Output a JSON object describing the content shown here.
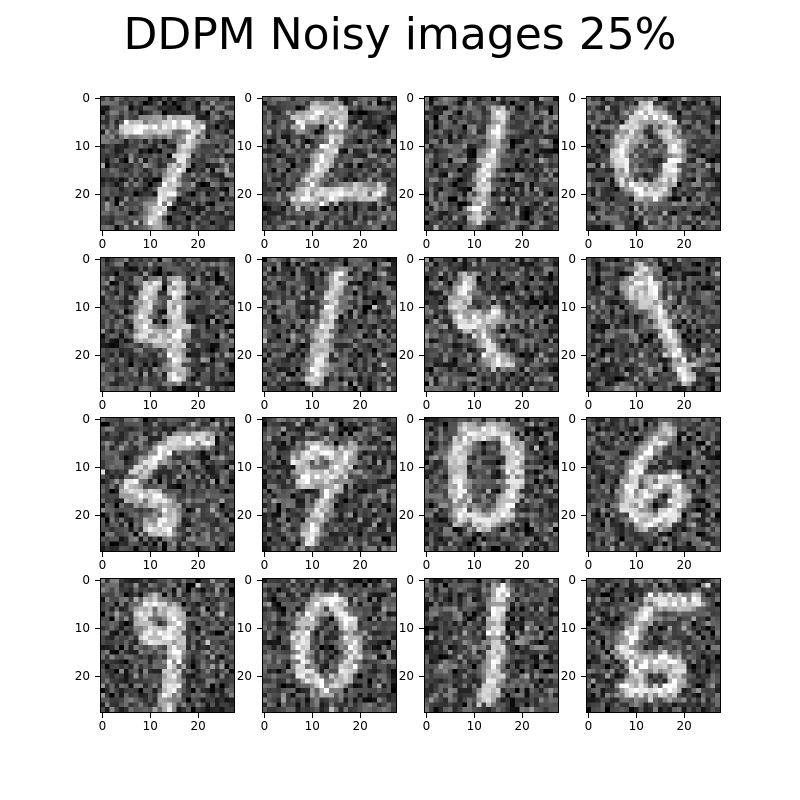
{
  "figure": {
    "title": "DDPM Noisy images 25%"
  },
  "grid": {
    "rows": 4,
    "cols": 4
  },
  "axes": {
    "image_size": 28,
    "ticks": [
      0,
      10,
      20
    ],
    "tick_labels": [
      "0",
      "10",
      "20"
    ]
  },
  "panels": [
    {
      "digit": "7"
    },
    {
      "digit": "2"
    },
    {
      "digit": "1"
    },
    {
      "digit": "0"
    },
    {
      "digit": "4"
    },
    {
      "digit": "1"
    },
    {
      "digit": "4"
    },
    {
      "digit": "9"
    },
    {
      "digit": "5"
    },
    {
      "digit": "9"
    },
    {
      "digit": "0"
    },
    {
      "digit": "6"
    },
    {
      "digit": "9"
    },
    {
      "digit": "0"
    },
    {
      "digit": "1"
    },
    {
      "digit": "5"
    }
  ],
  "noise_level_percent": 25,
  "colors": {
    "background": "#ffffff",
    "colormap": "gray"
  }
}
